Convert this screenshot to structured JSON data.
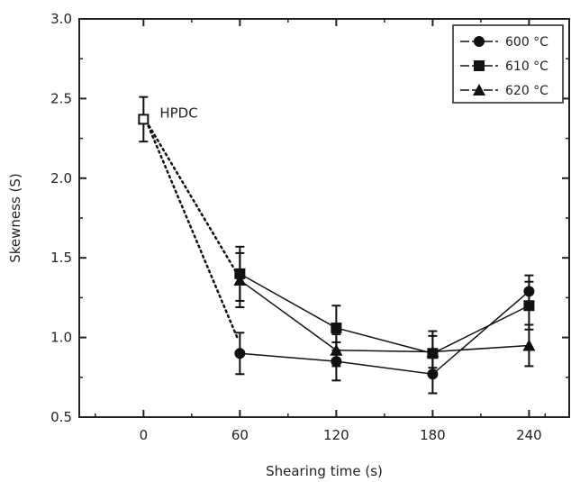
{
  "chart_data": {
    "type": "line",
    "title": "",
    "xlabel": "Shearing time (s)",
    "ylabel": "Skewness (S)",
    "xlim": [
      -40,
      265
    ],
    "ylim": [
      0.5,
      3.0
    ],
    "xticks": [
      0,
      60,
      120,
      180,
      240
    ],
    "yticks": [
      0.5,
      1.0,
      1.5,
      2.0,
      2.5,
      3.0
    ],
    "ytick_labels": [
      "0.5",
      "1.0",
      "1.5",
      "2.0",
      "2.5",
      "3.0"
    ],
    "grid": false,
    "legend_position": "top-right",
    "series": [
      {
        "name": "600 °C",
        "marker": "diamond",
        "x": [
          60,
          120,
          180,
          240
        ],
        "values": [
          0.9,
          0.85,
          0.77,
          1.29
        ],
        "errors": [
          0.13,
          0.12,
          0.12,
          0.1
        ]
      },
      {
        "name": "610 °C",
        "marker": "square",
        "x": [
          60,
          120,
          180,
          240
        ],
        "values": [
          1.4,
          1.06,
          0.9,
          1.2
        ],
        "errors": [
          0.17,
          0.14,
          0.14,
          0.15
        ]
      },
      {
        "name": "620 °C",
        "marker": "triangle",
        "x": [
          60,
          120,
          180,
          240
        ],
        "values": [
          1.36,
          0.92,
          0.91,
          0.95
        ],
        "errors": [
          0.17,
          0.1,
          0.1,
          0.13
        ]
      }
    ],
    "reference": {
      "label": "HPDC",
      "x": 0,
      "value": 2.37,
      "error": 0.14,
      "marker": "open-square",
      "dotted_links_to": [
        {
          "x": 60,
          "value": 1.0
        },
        {
          "x": 60,
          "value": 1.4
        }
      ]
    }
  }
}
